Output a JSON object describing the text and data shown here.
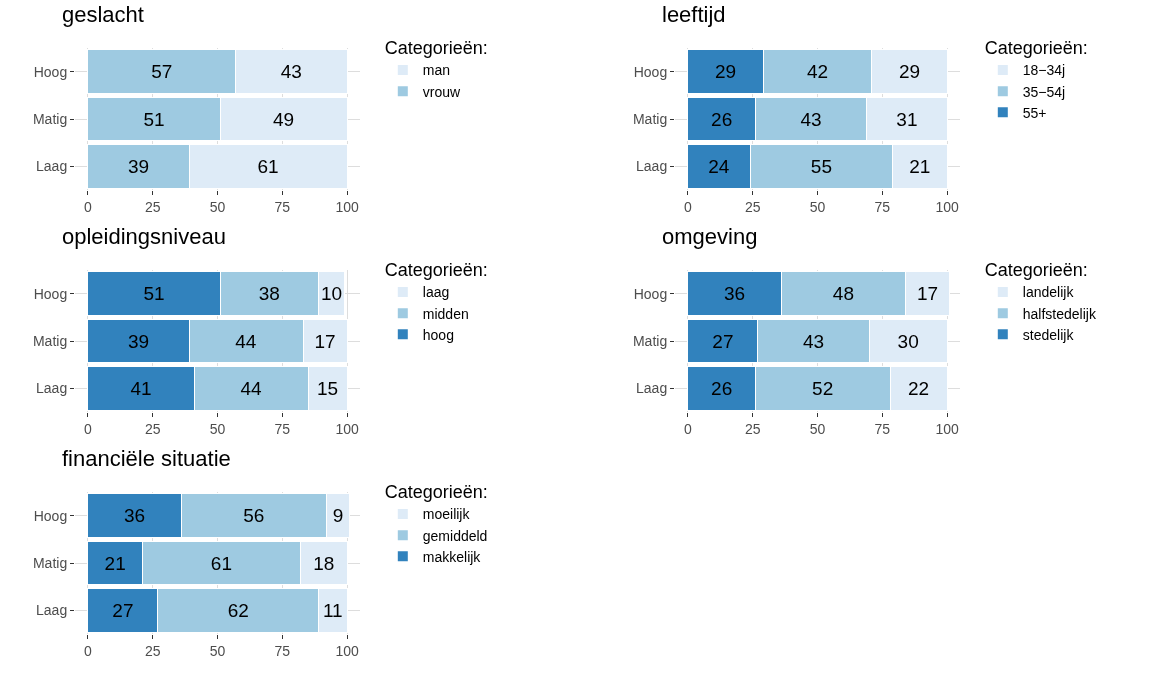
{
  "chart_data": [
    {
      "type": "bar",
      "title": "geslacht",
      "orientation": "horizontal",
      "stacked": true,
      "categories": [
        "Hoog",
        "Matig",
        "Laag"
      ],
      "xlim": [
        -5,
        105
      ],
      "xticks": [
        0,
        25,
        50,
        75,
        100
      ],
      "grid": true,
      "legend": "right",
      "legend_title": "Categorieën:",
      "data_labels": true,
      "series": [
        {
          "name": "vrouw",
          "color": "#9ecae1",
          "values": [
            57,
            51,
            39
          ]
        },
        {
          "name": "man",
          "color": "#deebf7",
          "values": [
            43,
            49,
            61
          ]
        }
      ]
    },
    {
      "type": "bar",
      "title": "leeftijd",
      "orientation": "horizontal",
      "stacked": true,
      "categories": [
        "Hoog",
        "Matig",
        "Laag"
      ],
      "xlim": [
        -5,
        105
      ],
      "xticks": [
        0,
        25,
        50,
        75,
        100
      ],
      "grid": true,
      "legend": "right",
      "legend_title": "Categorieën:",
      "data_labels": true,
      "series": [
        {
          "name": "55+",
          "color": "#3182bd",
          "values": [
            29,
            26,
            24
          ]
        },
        {
          "name": "35−54j",
          "color": "#9ecae1",
          "values": [
            42,
            43,
            55
          ]
        },
        {
          "name": "18−34j",
          "color": "#deebf7",
          "values": [
            29,
            31,
            21
          ]
        }
      ]
    },
    {
      "type": "bar",
      "title": "opleidingsniveau",
      "orientation": "horizontal",
      "stacked": true,
      "categories": [
        "Hoog",
        "Matig",
        "Laag"
      ],
      "xlim": [
        -5,
        105
      ],
      "xticks": [
        0,
        25,
        50,
        75,
        100
      ],
      "grid": true,
      "legend": "right",
      "legend_title": "Categorieën:",
      "data_labels": true,
      "series": [
        {
          "name": "hoog",
          "color": "#3182bd",
          "values": [
            51,
            39,
            41
          ]
        },
        {
          "name": "midden",
          "color": "#9ecae1",
          "values": [
            38,
            44,
            44
          ]
        },
        {
          "name": "laag",
          "color": "#deebf7",
          "values": [
            10,
            17,
            15
          ]
        }
      ]
    },
    {
      "type": "bar",
      "title": "omgeving",
      "orientation": "horizontal",
      "stacked": true,
      "categories": [
        "Hoog",
        "Matig",
        "Laag"
      ],
      "xlim": [
        -5,
        105
      ],
      "xticks": [
        0,
        25,
        50,
        75,
        100
      ],
      "grid": true,
      "legend": "right",
      "legend_title": "Categorieën:",
      "data_labels": true,
      "series": [
        {
          "name": "stedelijk",
          "color": "#3182bd",
          "values": [
            36,
            27,
            26
          ]
        },
        {
          "name": "halfstedelijk",
          "color": "#9ecae1",
          "values": [
            48,
            43,
            52
          ]
        },
        {
          "name": "landelijk",
          "color": "#deebf7",
          "values": [
            17,
            30,
            22
          ]
        }
      ]
    },
    {
      "type": "bar",
      "title": "financiële situatie",
      "orientation": "horizontal",
      "stacked": true,
      "categories": [
        "Hoog",
        "Matig",
        "Laag"
      ],
      "xlim": [
        -5,
        105
      ],
      "xticks": [
        0,
        25,
        50,
        75,
        100
      ],
      "grid": true,
      "legend": "right",
      "legend_title": "Categorieën:",
      "data_labels": true,
      "series": [
        {
          "name": "makkelijk",
          "color": "#3182bd",
          "values": [
            36,
            21,
            27
          ]
        },
        {
          "name": "gemiddeld",
          "color": "#9ecae1",
          "values": [
            56,
            61,
            62
          ]
        },
        {
          "name": "moeilijk",
          "color": "#deebf7",
          "values": [
            9,
            18,
            11
          ]
        }
      ]
    }
  ]
}
